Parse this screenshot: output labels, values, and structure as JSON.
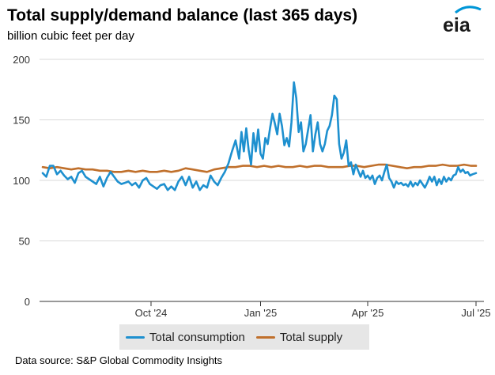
{
  "header": {
    "title": "Total supply/demand balance (last 365 days)",
    "subtitle": "billion cubic feet per day",
    "logo_text": "eia",
    "logo_color": "#1a1a1a",
    "logo_accent": "#0096d7"
  },
  "source": "Data source: S&P Global Commodity Insights",
  "colors": {
    "consumption": "#1e90cf",
    "supply": "#c0702c",
    "grid": "#d9d9d9",
    "axis": "#333333",
    "legend_bg": "#e6e6e6"
  },
  "chart_data": {
    "type": "line",
    "title": "Total supply/demand balance (last 365 days)",
    "ylabel": "billion cubic feet per day",
    "xlabel": "",
    "ylim": [
      0,
      200
    ],
    "yticks": [
      0,
      50,
      100,
      150,
      200
    ],
    "xlim_days": [
      0,
      364
    ],
    "xticks": [
      {
        "day": 91,
        "label": "Oct '24"
      },
      {
        "day": 183,
        "label": "Jan '25"
      },
      {
        "day": 273,
        "label": "Apr '25"
      },
      {
        "day": 364,
        "label": "Jul '25"
      }
    ],
    "legend": [
      "Total consumption",
      "Total supply"
    ],
    "series": [
      {
        "name": "Total consumption",
        "points": [
          [
            0,
            106
          ],
          [
            3,
            103
          ],
          [
            6,
            112
          ],
          [
            9,
            112
          ],
          [
            12,
            105
          ],
          [
            15,
            108
          ],
          [
            18,
            104
          ],
          [
            21,
            101
          ],
          [
            24,
            103
          ],
          [
            27,
            98
          ],
          [
            30,
            106
          ],
          [
            33,
            108
          ],
          [
            36,
            103
          ],
          [
            39,
            101
          ],
          [
            42,
            99
          ],
          [
            45,
            97
          ],
          [
            48,
            103
          ],
          [
            51,
            95
          ],
          [
            54,
            102
          ],
          [
            57,
            107
          ],
          [
            60,
            103
          ],
          [
            63,
            99
          ],
          [
            66,
            97
          ],
          [
            69,
            98
          ],
          [
            72,
            99
          ],
          [
            75,
            96
          ],
          [
            78,
            98
          ],
          [
            81,
            94
          ],
          [
            84,
            100
          ],
          [
            87,
            102
          ],
          [
            90,
            97
          ],
          [
            93,
            95
          ],
          [
            96,
            93
          ],
          [
            99,
            96
          ],
          [
            102,
            97
          ],
          [
            105,
            92
          ],
          [
            108,
            95
          ],
          [
            111,
            92
          ],
          [
            114,
            99
          ],
          [
            117,
            103
          ],
          [
            120,
            96
          ],
          [
            123,
            103
          ],
          [
            126,
            94
          ],
          [
            129,
            99
          ],
          [
            132,
            92
          ],
          [
            135,
            96
          ],
          [
            138,
            94
          ],
          [
            141,
            104
          ],
          [
            144,
            99
          ],
          [
            147,
            96
          ],
          [
            150,
            102
          ],
          [
            153,
            107
          ],
          [
            156,
            114
          ],
          [
            159,
            124
          ],
          [
            162,
            133
          ],
          [
            165,
            118
          ],
          [
            167,
            140
          ],
          [
            169,
            124
          ],
          [
            171,
            143
          ],
          [
            173,
            125
          ],
          [
            175,
            113
          ],
          [
            177,
            139
          ],
          [
            179,
            124
          ],
          [
            181,
            142
          ],
          [
            183,
            122
          ],
          [
            185,
            118
          ],
          [
            187,
            135
          ],
          [
            189,
            130
          ],
          [
            191,
            143
          ],
          [
            193,
            155
          ],
          [
            195,
            147
          ],
          [
            197,
            138
          ],
          [
            199,
            155
          ],
          [
            201,
            145
          ],
          [
            203,
            129
          ],
          [
            205,
            135
          ],
          [
            207,
            128
          ],
          [
            209,
            148
          ],
          [
            211,
            181
          ],
          [
            213,
            168
          ],
          [
            215,
            140
          ],
          [
            217,
            148
          ],
          [
            219,
            124
          ],
          [
            221,
            130
          ],
          [
            223,
            142
          ],
          [
            225,
            154
          ],
          [
            227,
            124
          ],
          [
            229,
            138
          ],
          [
            231,
            148
          ],
          [
            233,
            130
          ],
          [
            235,
            124
          ],
          [
            237,
            130
          ],
          [
            239,
            141
          ],
          [
            241,
            145
          ],
          [
            243,
            154
          ],
          [
            245,
            170
          ],
          [
            247,
            167
          ],
          [
            249,
            130
          ],
          [
            251,
            118
          ],
          [
            253,
            123
          ],
          [
            255,
            133
          ],
          [
            257,
            112
          ],
          [
            259,
            115
          ],
          [
            261,
            105
          ],
          [
            263,
            113
          ],
          [
            265,
            108
          ],
          [
            267,
            103
          ],
          [
            269,
            108
          ],
          [
            271,
            102
          ],
          [
            273,
            104
          ],
          [
            275,
            101
          ],
          [
            277,
            104
          ],
          [
            279,
            97
          ],
          [
            281,
            102
          ],
          [
            283,
            104
          ],
          [
            285,
            100
          ],
          [
            287,
            107
          ],
          [
            289,
            113
          ],
          [
            291,
            102
          ],
          [
            293,
            99
          ],
          [
            295,
            94
          ],
          [
            297,
            99
          ],
          [
            299,
            97
          ],
          [
            301,
            98
          ],
          [
            303,
            96
          ],
          [
            305,
            97
          ],
          [
            307,
            95
          ],
          [
            309,
            99
          ],
          [
            311,
            95
          ],
          [
            313,
            98
          ],
          [
            315,
            96
          ],
          [
            317,
            100
          ],
          [
            319,
            97
          ],
          [
            321,
            94
          ],
          [
            323,
            98
          ],
          [
            325,
            103
          ],
          [
            327,
            99
          ],
          [
            329,
            103
          ],
          [
            331,
            96
          ],
          [
            333,
            101
          ],
          [
            335,
            97
          ],
          [
            337,
            103
          ],
          [
            339,
            99
          ],
          [
            341,
            102
          ],
          [
            343,
            100
          ],
          [
            345,
            104
          ],
          [
            347,
            105
          ],
          [
            349,
            111
          ],
          [
            351,
            107
          ],
          [
            353,
            109
          ],
          [
            355,
            106
          ],
          [
            357,
            107
          ],
          [
            359,
            104
          ],
          [
            361,
            105
          ],
          [
            364,
            106
          ]
        ]
      },
      {
        "name": "Total supply",
        "points": [
          [
            0,
            111
          ],
          [
            6,
            110
          ],
          [
            12,
            111
          ],
          [
            18,
            110
          ],
          [
            24,
            109
          ],
          [
            30,
            110
          ],
          [
            36,
            109
          ],
          [
            42,
            109
          ],
          [
            48,
            108
          ],
          [
            54,
            108
          ],
          [
            60,
            107
          ],
          [
            66,
            107
          ],
          [
            72,
            108
          ],
          [
            78,
            107
          ],
          [
            84,
            108
          ],
          [
            90,
            107
          ],
          [
            96,
            107
          ],
          [
            102,
            108
          ],
          [
            108,
            107
          ],
          [
            114,
            108
          ],
          [
            120,
            110
          ],
          [
            126,
            109
          ],
          [
            132,
            108
          ],
          [
            138,
            107
          ],
          [
            144,
            109
          ],
          [
            150,
            110
          ],
          [
            156,
            111
          ],
          [
            162,
            111
          ],
          [
            168,
            112
          ],
          [
            174,
            112
          ],
          [
            180,
            111
          ],
          [
            186,
            112
          ],
          [
            192,
            111
          ],
          [
            198,
            112
          ],
          [
            204,
            111
          ],
          [
            210,
            111
          ],
          [
            216,
            112
          ],
          [
            222,
            111
          ],
          [
            228,
            112
          ],
          [
            234,
            112
          ],
          [
            240,
            111
          ],
          [
            246,
            111
          ],
          [
            252,
            111
          ],
          [
            258,
            112
          ],
          [
            264,
            112
          ],
          [
            270,
            111
          ],
          [
            276,
            112
          ],
          [
            282,
            113
          ],
          [
            288,
            113
          ],
          [
            294,
            112
          ],
          [
            300,
            111
          ],
          [
            306,
            110
          ],
          [
            312,
            111
          ],
          [
            318,
            111
          ],
          [
            324,
            112
          ],
          [
            330,
            112
          ],
          [
            336,
            113
          ],
          [
            342,
            112
          ],
          [
            348,
            112
          ],
          [
            354,
            113
          ],
          [
            360,
            112
          ],
          [
            364,
            112
          ]
        ]
      }
    ]
  }
}
